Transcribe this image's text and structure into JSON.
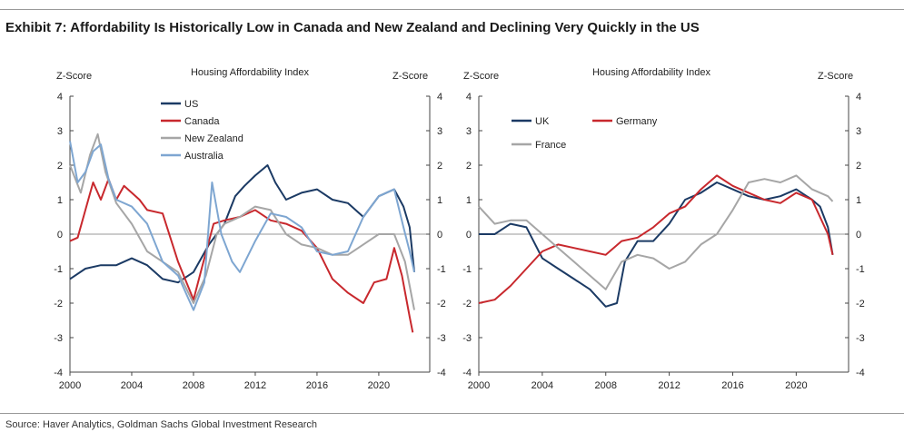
{
  "title": "Exhibit 7: Affordability Is Historically Low in Canada and New Zealand and Declining Very Quickly in the US",
  "source": "Source: Haver Analytics, Goldman Sachs Global Investment Research",
  "colors": {
    "US": "#1b3a64",
    "Canada": "#c8282d",
    "New Zealand": "#a6a6a6",
    "Australia": "#7ea6d1",
    "UK": "#1b3a64",
    "Germany": "#c8282d",
    "France": "#a6a6a6"
  },
  "chart_data": [
    {
      "type": "line",
      "title": "Housing Affordability Index",
      "ylabel_left": "Z-Score",
      "ylabel_right": "Z-Score",
      "xlim": [
        2000,
        2023.3
      ],
      "ylim": [
        -4,
        4
      ],
      "xticks": [
        2000,
        2004,
        2008,
        2012,
        2016,
        2020
      ],
      "xtick_labels": [
        "2000",
        "2004",
        "2008",
        "2012",
        "2016",
        "2020"
      ],
      "yticks": [
        -4,
        -3,
        -2,
        -1,
        0,
        1,
        2,
        3,
        4
      ],
      "ytick_labels": [
        "-4",
        "-3",
        "-2",
        "-1",
        "0",
        "1",
        "2",
        "3",
        "4"
      ],
      "legend": [
        "US",
        "Canada",
        "New Zealand",
        "Australia"
      ],
      "series": [
        {
          "name": "US",
          "points": [
            [
              2000,
              -1.3
            ],
            [
              2001,
              -1.0
            ],
            [
              2002,
              -0.9
            ],
            [
              2003,
              -0.9
            ],
            [
              2004,
              -0.7
            ],
            [
              2005,
              -0.9
            ],
            [
              2006,
              -1.3
            ],
            [
              2007,
              -1.4
            ],
            [
              2008,
              -1.1
            ],
            [
              2009,
              -0.3
            ],
            [
              2010,
              0.3
            ],
            [
              2010.7,
              1.1
            ],
            [
              2011.3,
              1.4
            ],
            [
              2012,
              1.7
            ],
            [
              2012.8,
              2.0
            ],
            [
              2013.3,
              1.5
            ],
            [
              2014,
              1.0
            ],
            [
              2015,
              1.2
            ],
            [
              2016,
              1.3
            ],
            [
              2017,
              1.0
            ],
            [
              2018,
              0.9
            ],
            [
              2019,
              0.5
            ],
            [
              2020,
              1.1
            ],
            [
              2021,
              1.3
            ],
            [
              2021.6,
              0.8
            ],
            [
              2022,
              0.2
            ],
            [
              2022.3,
              -1.1
            ]
          ]
        },
        {
          "name": "Canada",
          "points": [
            [
              2000,
              -0.2
            ],
            [
              2000.5,
              -0.1
            ],
            [
              2001,
              0.7
            ],
            [
              2001.5,
              1.5
            ],
            [
              2002,
              1.0
            ],
            [
              2002.5,
              1.6
            ],
            [
              2003,
              1.0
            ],
            [
              2003.5,
              1.4
            ],
            [
              2004,
              1.2
            ],
            [
              2004.5,
              1.0
            ],
            [
              2005,
              0.7
            ],
            [
              2006,
              0.6
            ],
            [
              2007,
              -0.8
            ],
            [
              2008,
              -1.9
            ],
            [
              2008.7,
              -0.7
            ],
            [
              2009.3,
              0.3
            ],
            [
              2010,
              0.4
            ],
            [
              2011,
              0.5
            ],
            [
              2012,
              0.7
            ],
            [
              2013,
              0.4
            ],
            [
              2014,
              0.3
            ],
            [
              2015,
              0.1
            ],
            [
              2016,
              -0.4
            ],
            [
              2017,
              -1.3
            ],
            [
              2018,
              -1.7
            ],
            [
              2019,
              -2.0
            ],
            [
              2019.7,
              -1.4
            ],
            [
              2020.5,
              -1.3
            ],
            [
              2021,
              -0.4
            ],
            [
              2021.5,
              -1.2
            ],
            [
              2022,
              -2.4
            ],
            [
              2022.2,
              -2.85
            ]
          ]
        },
        {
          "name": "New Zealand",
          "points": [
            [
              2000,
              2.0
            ],
            [
              2000.7,
              1.2
            ],
            [
              2001.3,
              2.3
            ],
            [
              2001.8,
              2.9
            ],
            [
              2002.3,
              1.8
            ],
            [
              2003,
              0.9
            ],
            [
              2004,
              0.3
            ],
            [
              2005,
              -0.5
            ],
            [
              2006,
              -0.8
            ],
            [
              2007,
              -1.1
            ],
            [
              2008,
              -2.0
            ],
            [
              2008.8,
              -1.2
            ],
            [
              2009.5,
              0.0
            ],
            [
              2010,
              0.3
            ],
            [
              2011,
              0.5
            ],
            [
              2012,
              0.8
            ],
            [
              2013,
              0.7
            ],
            [
              2014,
              0.0
            ],
            [
              2015,
              -0.3
            ],
            [
              2016,
              -0.4
            ],
            [
              2017,
              -0.6
            ],
            [
              2018,
              -0.6
            ],
            [
              2019,
              -0.3
            ],
            [
              2020,
              0.0
            ],
            [
              2021,
              0.0
            ],
            [
              2021.7,
              -0.8
            ],
            [
              2022,
              -1.5
            ],
            [
              2022.3,
              -2.2
            ]
          ]
        },
        {
          "name": "Australia",
          "points": [
            [
              2000,
              2.7
            ],
            [
              2000.5,
              1.5
            ],
            [
              2001,
              1.8
            ],
            [
              2001.5,
              2.4
            ],
            [
              2002,
              2.6
            ],
            [
              2002.5,
              1.6
            ],
            [
              2003,
              1.0
            ],
            [
              2004,
              0.8
            ],
            [
              2005,
              0.3
            ],
            [
              2006,
              -0.8
            ],
            [
              2007,
              -1.2
            ],
            [
              2008,
              -2.2
            ],
            [
              2008.7,
              -1.4
            ],
            [
              2009.2,
              1.5
            ],
            [
              2009.8,
              0.0
            ],
            [
              2010.5,
              -0.8
            ],
            [
              2011,
              -1.1
            ],
            [
              2012,
              -0.2
            ],
            [
              2013,
              0.6
            ],
            [
              2014,
              0.5
            ],
            [
              2015,
              0.2
            ],
            [
              2016,
              -0.5
            ],
            [
              2017,
              -0.6
            ],
            [
              2018,
              -0.5
            ],
            [
              2019,
              0.5
            ],
            [
              2020,
              1.1
            ],
            [
              2021,
              1.3
            ],
            [
              2021.6,
              0.2
            ],
            [
              2022,
              -0.5
            ],
            [
              2022.3,
              -1.1
            ]
          ]
        }
      ]
    },
    {
      "type": "line",
      "title": "Housing Affordability Index",
      "ylabel_left": "Z-Score",
      "ylabel_right": "Z-Score",
      "xlim": [
        2000,
        2023.3
      ],
      "ylim": [
        -4,
        4
      ],
      "xticks": [
        2000,
        2004,
        2008,
        2012,
        2016,
        2020
      ],
      "xtick_labels": [
        "2000",
        "2004",
        "2008",
        "2012",
        "2016",
        "2020"
      ],
      "yticks": [
        -4,
        -3,
        -2,
        -1,
        0,
        1,
        2,
        3,
        4
      ],
      "ytick_labels": [
        "-4",
        "-3",
        "-2",
        "-1",
        "0",
        "1",
        "2",
        "3",
        "4"
      ],
      "legend": [
        "UK",
        "Germany",
        "France"
      ],
      "series": [
        {
          "name": "UK",
          "points": [
            [
              2000,
              0.0
            ],
            [
              2001,
              0.0
            ],
            [
              2002,
              0.3
            ],
            [
              2003,
              0.2
            ],
            [
              2004,
              -0.7
            ],
            [
              2005,
              -1.0
            ],
            [
              2006,
              -1.3
            ],
            [
              2007,
              -1.6
            ],
            [
              2008,
              -2.1
            ],
            [
              2008.7,
              -2.0
            ],
            [
              2009.2,
              -0.8
            ],
            [
              2010,
              -0.2
            ],
            [
              2011,
              -0.2
            ],
            [
              2012,
              0.3
            ],
            [
              2013,
              1.0
            ],
            [
              2014,
              1.2
            ],
            [
              2015,
              1.5
            ],
            [
              2016,
              1.3
            ],
            [
              2017,
              1.1
            ],
            [
              2018,
              1.0
            ],
            [
              2019,
              1.1
            ],
            [
              2020,
              1.3
            ],
            [
              2021,
              1.0
            ],
            [
              2021.5,
              0.8
            ],
            [
              2022,
              0.2
            ],
            [
              2022.3,
              -0.6
            ]
          ]
        },
        {
          "name": "Germany",
          "points": [
            [
              2000,
              -2.0
            ],
            [
              2001,
              -1.9
            ],
            [
              2002,
              -1.5
            ],
            [
              2003,
              -1.0
            ],
            [
              2004,
              -0.5
            ],
            [
              2005,
              -0.3
            ],
            [
              2006,
              -0.4
            ],
            [
              2007,
              -0.5
            ],
            [
              2008,
              -0.6
            ],
            [
              2009,
              -0.2
            ],
            [
              2010,
              -0.1
            ],
            [
              2011,
              0.2
            ],
            [
              2012,
              0.6
            ],
            [
              2013,
              0.8
            ],
            [
              2014,
              1.3
            ],
            [
              2015,
              1.7
            ],
            [
              2016,
              1.4
            ],
            [
              2017,
              1.2
            ],
            [
              2018,
              1.0
            ],
            [
              2019,
              0.9
            ],
            [
              2020,
              1.2
            ],
            [
              2021,
              1.0
            ],
            [
              2022,
              0.0
            ],
            [
              2022.3,
              -0.6
            ]
          ]
        },
        {
          "name": "France",
          "points": [
            [
              2000,
              0.8
            ],
            [
              2001,
              0.3
            ],
            [
              2002,
              0.4
            ],
            [
              2003,
              0.4
            ],
            [
              2004,
              0.0
            ],
            [
              2005,
              -0.4
            ],
            [
              2006,
              -0.8
            ],
            [
              2007,
              -1.2
            ],
            [
              2008,
              -1.6
            ],
            [
              2009,
              -0.8
            ],
            [
              2010,
              -0.6
            ],
            [
              2011,
              -0.7
            ],
            [
              2012,
              -1.0
            ],
            [
              2013,
              -0.8
            ],
            [
              2014,
              -0.3
            ],
            [
              2015,
              0.0
            ],
            [
              2016,
              0.7
            ],
            [
              2017,
              1.5
            ],
            [
              2018,
              1.6
            ],
            [
              2019,
              1.5
            ],
            [
              2020,
              1.7
            ],
            [
              2021,
              1.3
            ],
            [
              2022,
              1.1
            ],
            [
              2022.3,
              0.95
            ]
          ]
        }
      ]
    }
  ]
}
